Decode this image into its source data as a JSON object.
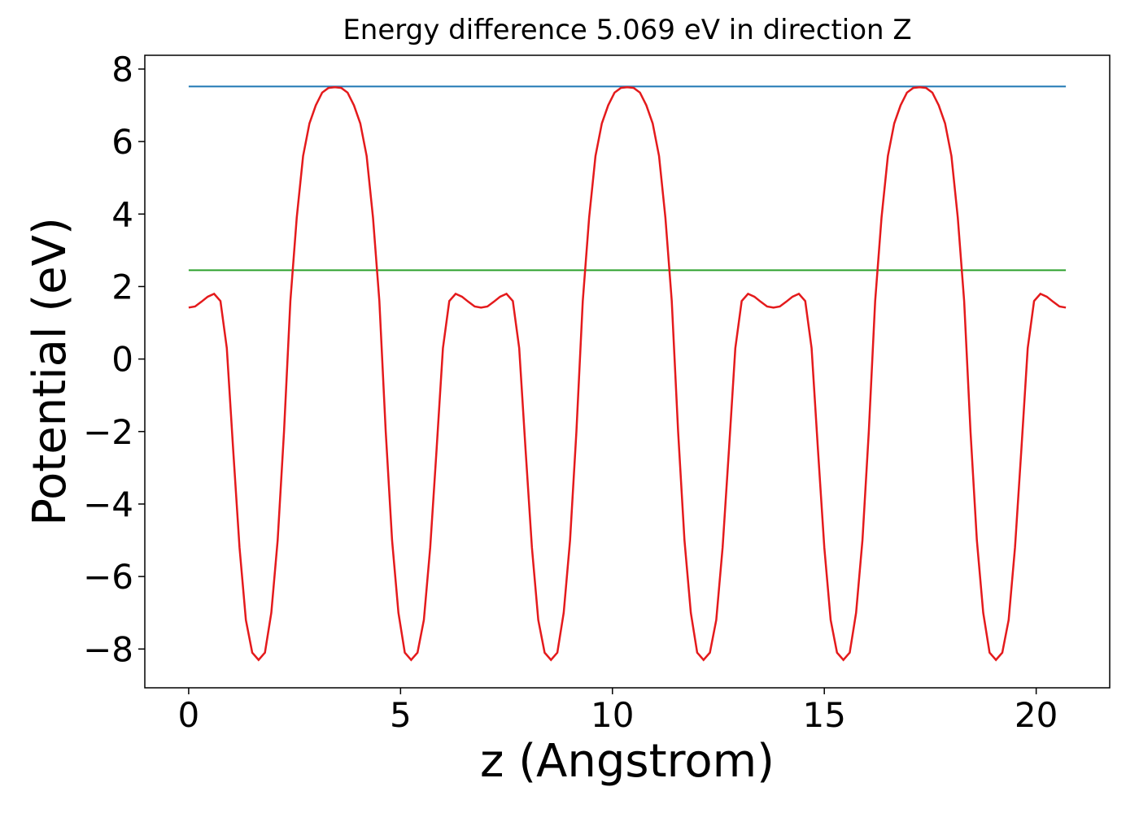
{
  "chart_data": {
    "type": "line",
    "title": "Energy difference 5.069 eV in direction Z",
    "xlabel": "z (Angstrom)",
    "ylabel": "Potential (eV)",
    "xlim": [
      -1.035,
      21.735
    ],
    "ylim": [
      -9.07,
      8.38
    ],
    "xticks": [
      0,
      5,
      10,
      15,
      20
    ],
    "yticks": [
      {
        "value": -8,
        "label": "−8"
      },
      {
        "value": -6,
        "label": "−6"
      },
      {
        "value": -4,
        "label": "−4"
      },
      {
        "value": -2,
        "label": "−2"
      },
      0,
      2,
      4,
      6,
      8
    ],
    "series": [
      {
        "color": "#1f77b4",
        "x": [
          0,
          20.7
        ],
        "values": [
          7.52,
          7.52
        ]
      },
      {
        "color": "#2ca02c",
        "x": [
          0,
          20.7
        ],
        "values": [
          2.451,
          2.451
        ]
      },
      {
        "color": "#e41a1c",
        "x": [
          0,
          0.15,
          0.3,
          0.45,
          0.6,
          0.75,
          0.9,
          1.05,
          1.2,
          1.35,
          1.5,
          1.65,
          1.8,
          1.95,
          2.1,
          2.25,
          2.4,
          2.55,
          2.7,
          2.85,
          3.0,
          3.15,
          3.3,
          3.45,
          3.6,
          3.75,
          3.9,
          4.05,
          4.2,
          4.35,
          4.5,
          4.65,
          4.8,
          4.95,
          5.1,
          5.25,
          5.4,
          5.55,
          5.7,
          5.85,
          6.0,
          6.15,
          6.3,
          6.45,
          6.6,
          6.75,
          6.9,
          7.05,
          7.2,
          7.35,
          7.5,
          7.65,
          7.8,
          7.95,
          8.1,
          8.25,
          8.4,
          8.55,
          8.7,
          8.85,
          9.0,
          9.15,
          9.3,
          9.45,
          9.6,
          9.75,
          9.9,
          10.05,
          10.2,
          10.35,
          10.5,
          10.65,
          10.8,
          10.95,
          11.1,
          11.25,
          11.4,
          11.55,
          11.7,
          11.85,
          12.0,
          12.15,
          12.3,
          12.45,
          12.6,
          12.75,
          12.9,
          13.05,
          13.2,
          13.35,
          13.5,
          13.65,
          13.8,
          13.95,
          14.1,
          14.25,
          14.4,
          14.55,
          14.7,
          14.85,
          15.0,
          15.15,
          15.3,
          15.45,
          15.6,
          15.75,
          15.9,
          16.05,
          16.2,
          16.35,
          16.5,
          16.65,
          16.8,
          16.95,
          17.1,
          17.25,
          17.4,
          17.55,
          17.7,
          17.85,
          18.0,
          18.15,
          18.3,
          18.45,
          18.6,
          18.75,
          18.9,
          19.05,
          19.2,
          19.35,
          19.5,
          19.65,
          19.8,
          19.95,
          20.1,
          20.25,
          20.4,
          20.55,
          20.7
        ],
        "values": [
          1.42,
          1.45,
          1.58,
          1.72,
          1.8,
          1.6,
          0.3,
          -2.5,
          -5.2,
          -7.2,
          -8.1,
          -8.3,
          -8.1,
          -7.0,
          -5.0,
          -2.0,
          1.6,
          3.9,
          5.6,
          6.5,
          7.0,
          7.35,
          7.48,
          7.5,
          7.48,
          7.35,
          7.0,
          6.5,
          5.6,
          3.9,
          1.6,
          -2.0,
          -5.0,
          -7.0,
          -8.1,
          -8.3,
          -8.1,
          -7.2,
          -5.2,
          -2.5,
          0.3,
          1.6,
          1.8,
          1.72,
          1.58,
          1.45,
          1.42,
          1.45,
          1.58,
          1.72,
          1.8,
          1.6,
          0.3,
          -2.5,
          -5.2,
          -7.2,
          -8.1,
          -8.3,
          -8.1,
          -7.0,
          -5.0,
          -2.0,
          1.6,
          3.9,
          5.6,
          6.5,
          7.0,
          7.35,
          7.48,
          7.5,
          7.48,
          7.35,
          7.0,
          6.5,
          5.6,
          3.9,
          1.6,
          -2.0,
          -5.0,
          -7.0,
          -8.1,
          -8.3,
          -8.1,
          -7.2,
          -5.2,
          -2.5,
          0.3,
          1.6,
          1.8,
          1.72,
          1.58,
          1.45,
          1.42,
          1.45,
          1.58,
          1.72,
          1.8,
          1.6,
          0.3,
          -2.5,
          -5.2,
          -7.2,
          -8.1,
          -8.3,
          -8.1,
          -7.0,
          -5.0,
          -2.0,
          1.6,
          3.9,
          5.6,
          6.5,
          7.0,
          7.35,
          7.48,
          7.5,
          7.48,
          7.35,
          7.0,
          6.5,
          5.6,
          3.9,
          1.6,
          -2.0,
          -5.0,
          -7.0,
          -8.1,
          -8.3,
          -8.1,
          -7.2,
          -5.2,
          -2.5,
          0.3,
          1.6,
          1.8,
          1.72,
          1.58,
          1.45,
          1.42
        ]
      }
    ]
  }
}
